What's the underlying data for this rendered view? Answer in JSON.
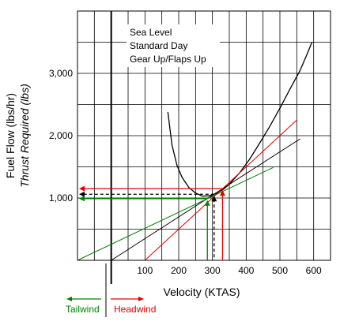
{
  "chart_data": {
    "type": "line",
    "xlabel": "Velocity (KTAS)",
    "ylabel": "Fuel Flow (lbs/hr)",
    "ylabel2": "Thrust Required (lbs)",
    "x_ticks": [
      100,
      200,
      300,
      400,
      500,
      600
    ],
    "x_tick_labels": [
      "100",
      "200",
      "300",
      "400",
      "500",
      "600"
    ],
    "y_ticks": [
      1000,
      2000,
      3000
    ],
    "y_tick_labels": [
      "1,000",
      "2,000",
      "3,000"
    ],
    "xlim": [
      -100,
      650
    ],
    "ylim": [
      0,
      4000
    ],
    "grid": true,
    "annotation": [
      "Sea Level",
      "Standard Day",
      "Gear Up/Flaps Up"
    ],
    "wind_labels": {
      "tailwind": "Tailwind",
      "headwind": "Headwind"
    },
    "colors": {
      "tailwind": "#008000",
      "headwind": "#e00000",
      "curve": "#000000"
    },
    "series": [
      {
        "style": "curve",
        "color": "#000000",
        "x": [
          168,
          180,
          195,
          210,
          230,
          250,
          270,
          290,
          310,
          330,
          350,
          380,
          410,
          440,
          470,
          500,
          530,
          560,
          580,
          595
        ],
        "y": [
          2380,
          1850,
          1520,
          1330,
          1170,
          1080,
          1030,
          1035,
          1070,
          1130,
          1220,
          1400,
          1620,
          1880,
          2150,
          2440,
          2750,
          3050,
          3300,
          3500
        ]
      },
      {
        "style": "tangent",
        "color": "#000000",
        "x": [
          0,
          560
        ],
        "y": [
          0,
          1950
        ]
      },
      {
        "style": "tangent",
        "color": "#008000",
        "x": [
          -100,
          480
        ],
        "y": [
          0,
          1490
        ]
      },
      {
        "style": "tangent",
        "color": "#e00000",
        "x": [
          100,
          550
        ],
        "y": [
          0,
          2250
        ]
      }
    ],
    "tangent_points": [
      {
        "color": "#000000",
        "x": 305,
        "y": 1060
      },
      {
        "color": "#008000",
        "x": 285,
        "y": 990
      },
      {
        "color": "#e00000",
        "x": 330,
        "y": 1150
      }
    ],
    "reference_lines": [
      {
        "color": "#000000",
        "dashed": true,
        "x": 305,
        "y": 1060
      },
      {
        "color": "#008000",
        "dashed": false,
        "x": 285,
        "y": 990
      },
      {
        "color": "#e00000",
        "dashed": false,
        "x": 330,
        "y": 1150
      }
    ]
  }
}
